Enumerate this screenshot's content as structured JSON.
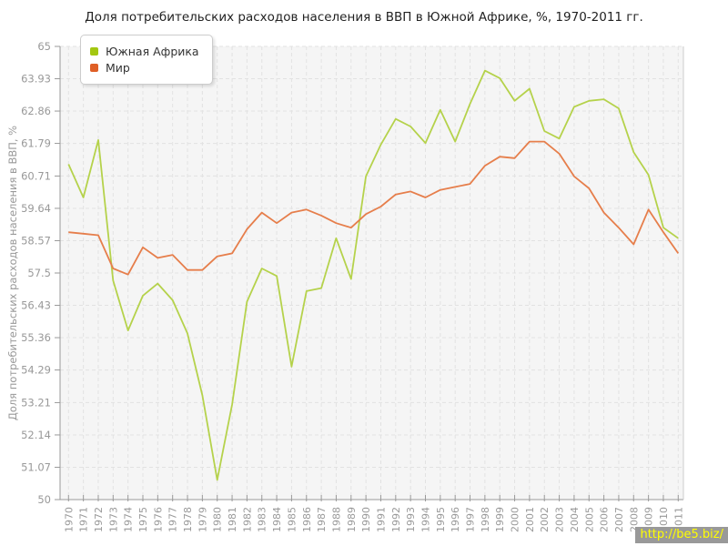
{
  "page": {
    "watermark": "http://be5.biz/"
  },
  "colors": {
    "plot_bg": "#f5f5f5",
    "grid": "#e2e2e2",
    "axis": "#999999",
    "right_border": "#cccccc",
    "tick_label": "#999999",
    "title": "#222222",
    "legend_text": "#333333",
    "legend_border": "#cccccc",
    "watermark_bg": "#999999",
    "watermark_text": "#ffff00"
  },
  "chart_data": {
    "type": "line",
    "title": "Доля потребительских расходов населения в ВВП в Южной Африке, %, 1970-2011 гг.",
    "ylabel": "Доля потребительских расходов населения в ВВП, %",
    "xlabel": "",
    "ylim": [
      50,
      65
    ],
    "grid": true,
    "legend_position": "top-left",
    "y_ticks": [
      "50",
      "51.07",
      "52.14",
      "53.21",
      "54.29",
      "55.36",
      "56.43",
      "57.5",
      "58.57",
      "59.64",
      "60.71",
      "61.79",
      "62.86",
      "63.93",
      "65"
    ],
    "x": [
      "1970",
      "1971",
      "1972",
      "1973",
      "1974",
      "1975",
      "1976",
      "1977",
      "1978",
      "1979",
      "1980",
      "1981",
      "1982",
      "1983",
      "1984",
      "1985",
      "1986",
      "1987",
      "1988",
      "1989",
      "1990",
      "1991",
      "1992",
      "1993",
      "1994",
      "1995",
      "1996",
      "1997",
      "1998",
      "1999",
      "2000",
      "2001",
      "2002",
      "2003",
      "2004",
      "2005",
      "2006",
      "2007",
      "2008",
      "2009",
      "2010",
      "2011"
    ],
    "series": [
      {
        "name": "Южная Африка",
        "line_color": "#b5d24b",
        "swatch_color": "#a3c711",
        "values": [
          61.1,
          60.0,
          61.9,
          57.25,
          55.6,
          56.75,
          57.15,
          56.6,
          55.5,
          53.45,
          50.65,
          53.15,
          56.55,
          57.65,
          57.4,
          54.4,
          56.9,
          57.0,
          58.65,
          57.3,
          60.7,
          61.75,
          62.6,
          62.35,
          61.8,
          62.9,
          61.85,
          63.1,
          64.2,
          63.95,
          63.2,
          63.6,
          62.2,
          61.95,
          63.0,
          63.2,
          63.25,
          62.95,
          61.5,
          60.75,
          59.0,
          58.65
        ]
      },
      {
        "name": "Мир",
        "line_color": "#e67e4b",
        "swatch_color": "#df5f26",
        "values": [
          58.85,
          58.8,
          58.75,
          57.65,
          57.45,
          58.35,
          58.0,
          58.1,
          57.6,
          57.6,
          58.05,
          58.15,
          58.95,
          59.5,
          59.15,
          59.5,
          59.6,
          59.4,
          59.15,
          59.0,
          59.45,
          59.7,
          60.1,
          60.2,
          60.0,
          60.25,
          60.35,
          60.45,
          61.05,
          61.35,
          61.3,
          61.85,
          61.85,
          61.45,
          60.7,
          60.3,
          59.5,
          59.0,
          58.45,
          59.6,
          58.85,
          58.15
        ]
      }
    ]
  }
}
